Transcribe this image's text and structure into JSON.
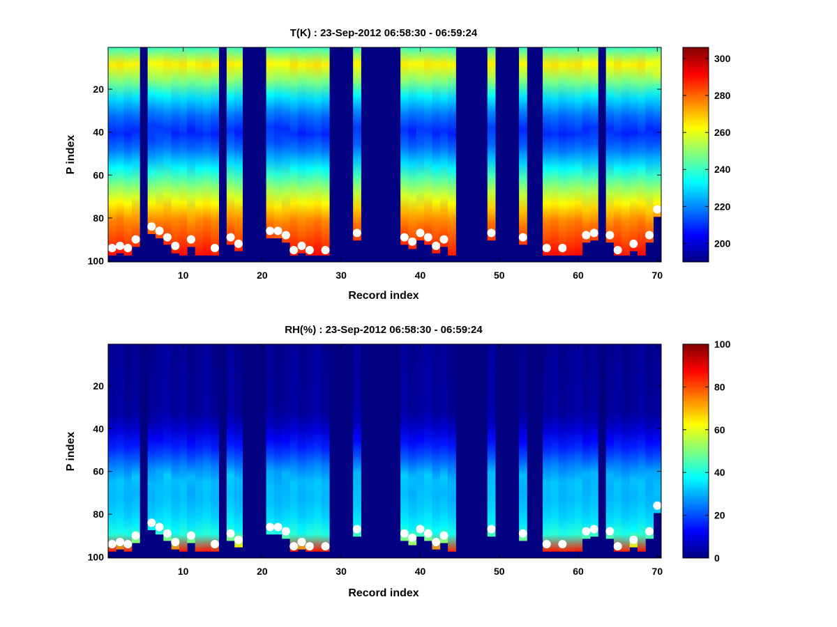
{
  "chart_data": [
    {
      "type": "heatmap",
      "title": "T(K) : 23-Sep-2012 06:58:30 - 06:59:24",
      "xlabel": "Record index",
      "ylabel": "P index",
      "xlim": [
        0.5,
        70.5
      ],
      "ylim": [
        100,
        1
      ],
      "y_reversed": true,
      "x_ticks": [
        "10",
        "20",
        "30",
        "40",
        "50",
        "60",
        "70"
      ],
      "y_ticks": [
        "20",
        "40",
        "60",
        "80",
        "100"
      ],
      "colormap": "jet",
      "color_range": [
        190,
        306
      ],
      "colorbar_ticks": [
        "200",
        "220",
        "240",
        "260",
        "280",
        "300"
      ],
      "empty_records": [
        5,
        15,
        18,
        19,
        20,
        29,
        30,
        31,
        33,
        34,
        35,
        36,
        37,
        45,
        46,
        47,
        48,
        50,
        51,
        52,
        54,
        55,
        63
      ],
      "profile_vs_p_index": {
        "p": [
          1,
          10,
          20,
          30,
          40,
          50,
          60,
          70,
          80,
          90,
          97
        ],
        "value": [
          240,
          268,
          238,
          220,
          208,
          220,
          240,
          258,
          276,
          284,
          290
        ]
      },
      "surface_markers": {
        "record": [
          1,
          2,
          3,
          4,
          6,
          7,
          8,
          9,
          11,
          14,
          16,
          17,
          21,
          22,
          23,
          24,
          25,
          26,
          28,
          32,
          38,
          39,
          40,
          41,
          42,
          43,
          49,
          53,
          56,
          58,
          61,
          62,
          64,
          65,
          67,
          69,
          70
        ],
        "p_index": [
          94,
          93,
          94,
          90,
          84,
          86,
          89,
          93,
          90,
          94,
          89,
          92,
          86,
          86,
          88,
          95,
          93,
          95,
          95,
          87,
          89,
          91,
          87,
          89,
          93,
          90,
          87,
          89,
          94,
          94,
          88,
          87,
          88,
          95,
          92,
          88,
          76
        ]
      }
    },
    {
      "type": "heatmap",
      "title": "RH(%) : 23-Sep-2012 06:58:30 - 06:59:24",
      "xlabel": "Record index",
      "ylabel": "P index",
      "xlim": [
        0.5,
        70.5
      ],
      "ylim": [
        100,
        1
      ],
      "y_reversed": true,
      "x_ticks": [
        "10",
        "20",
        "30",
        "40",
        "50",
        "60",
        "70"
      ],
      "y_ticks": [
        "20",
        "40",
        "60",
        "80",
        "100"
      ],
      "colormap": "jet",
      "color_range": [
        0,
        100
      ],
      "colorbar_ticks": [
        "0",
        "20",
        "40",
        "60",
        "80",
        "100"
      ],
      "empty_records": [
        5,
        15,
        18,
        19,
        20,
        29,
        30,
        31,
        33,
        34,
        35,
        36,
        37,
        45,
        46,
        47,
        48,
        50,
        51,
        52,
        54,
        55,
        63
      ],
      "profile_vs_p_index": {
        "p": [
          1,
          35,
          45,
          55,
          62,
          70,
          80,
          88,
          94,
          97
        ],
        "value": [
          2,
          3,
          12,
          22,
          32,
          30,
          33,
          38,
          55,
          85
        ]
      },
      "surface_markers": {
        "record": [
          1,
          2,
          3,
          4,
          6,
          7,
          8,
          9,
          11,
          14,
          16,
          17,
          21,
          22,
          23,
          24,
          25,
          26,
          28,
          32,
          38,
          39,
          40,
          41,
          42,
          43,
          49,
          53,
          56,
          58,
          61,
          62,
          64,
          65,
          67,
          69,
          70
        ],
        "p_index": [
          94,
          93,
          94,
          90,
          84,
          86,
          89,
          93,
          90,
          94,
          89,
          92,
          86,
          86,
          88,
          95,
          93,
          95,
          95,
          87,
          89,
          91,
          87,
          89,
          93,
          90,
          87,
          89,
          94,
          94,
          88,
          87,
          88,
          95,
          92,
          88,
          76
        ]
      }
    }
  ]
}
